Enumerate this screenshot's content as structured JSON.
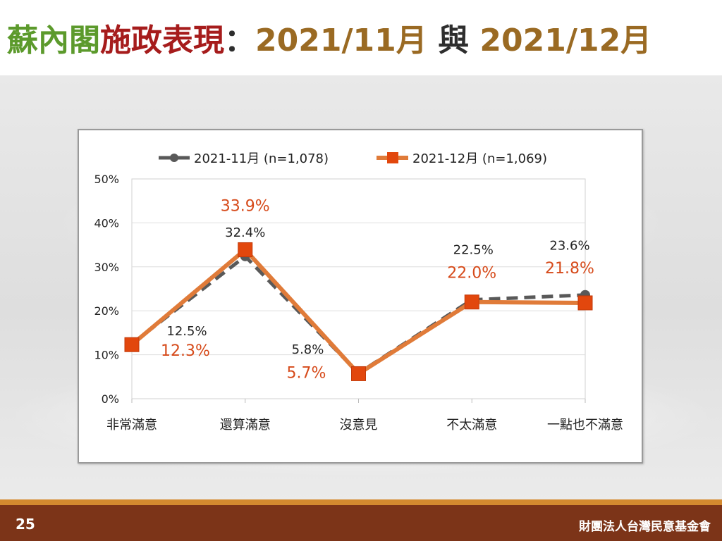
{
  "title": {
    "part1": "蘇內閣",
    "part2": "施政表現",
    "colon": "：",
    "part3": "2021/11月",
    "part4": "與",
    "part5": "2021/12月"
  },
  "footer": {
    "page_number": "25",
    "organization": "財團法人台灣民意基金會"
  },
  "colors": {
    "nov_series": "#595959",
    "dec_series": "#e07b39",
    "dec_marker": "#e2470d",
    "dec_label": "#d64a1a",
    "nov_label": "#222222"
  },
  "chart_data": {
    "type": "line",
    "categories": [
      "非常滿意",
      "還算滿意",
      "沒意見",
      "不太滿意",
      "一點也不滿意"
    ],
    "series": [
      {
        "name": "2021-11月 (n=1,078)",
        "values": [
          12.5,
          32.4,
          5.8,
          22.5,
          23.6
        ],
        "labels": [
          "12.5%",
          "32.4%",
          "5.8%",
          "22.5%",
          "23.6%"
        ],
        "style": "dashed"
      },
      {
        "name": "2021-12月 (n=1,069)",
        "values": [
          12.3,
          33.9,
          5.7,
          22.0,
          21.8
        ],
        "labels": [
          "12.3%",
          "33.9%",
          "5.7%",
          "22.0%",
          "21.8%"
        ],
        "style": "solid"
      }
    ],
    "ylim": [
      0,
      50
    ],
    "y_ticks": [
      "0%",
      "10%",
      "20%",
      "30%",
      "40%",
      "50%"
    ],
    "grid": true,
    "legend": "top"
  }
}
